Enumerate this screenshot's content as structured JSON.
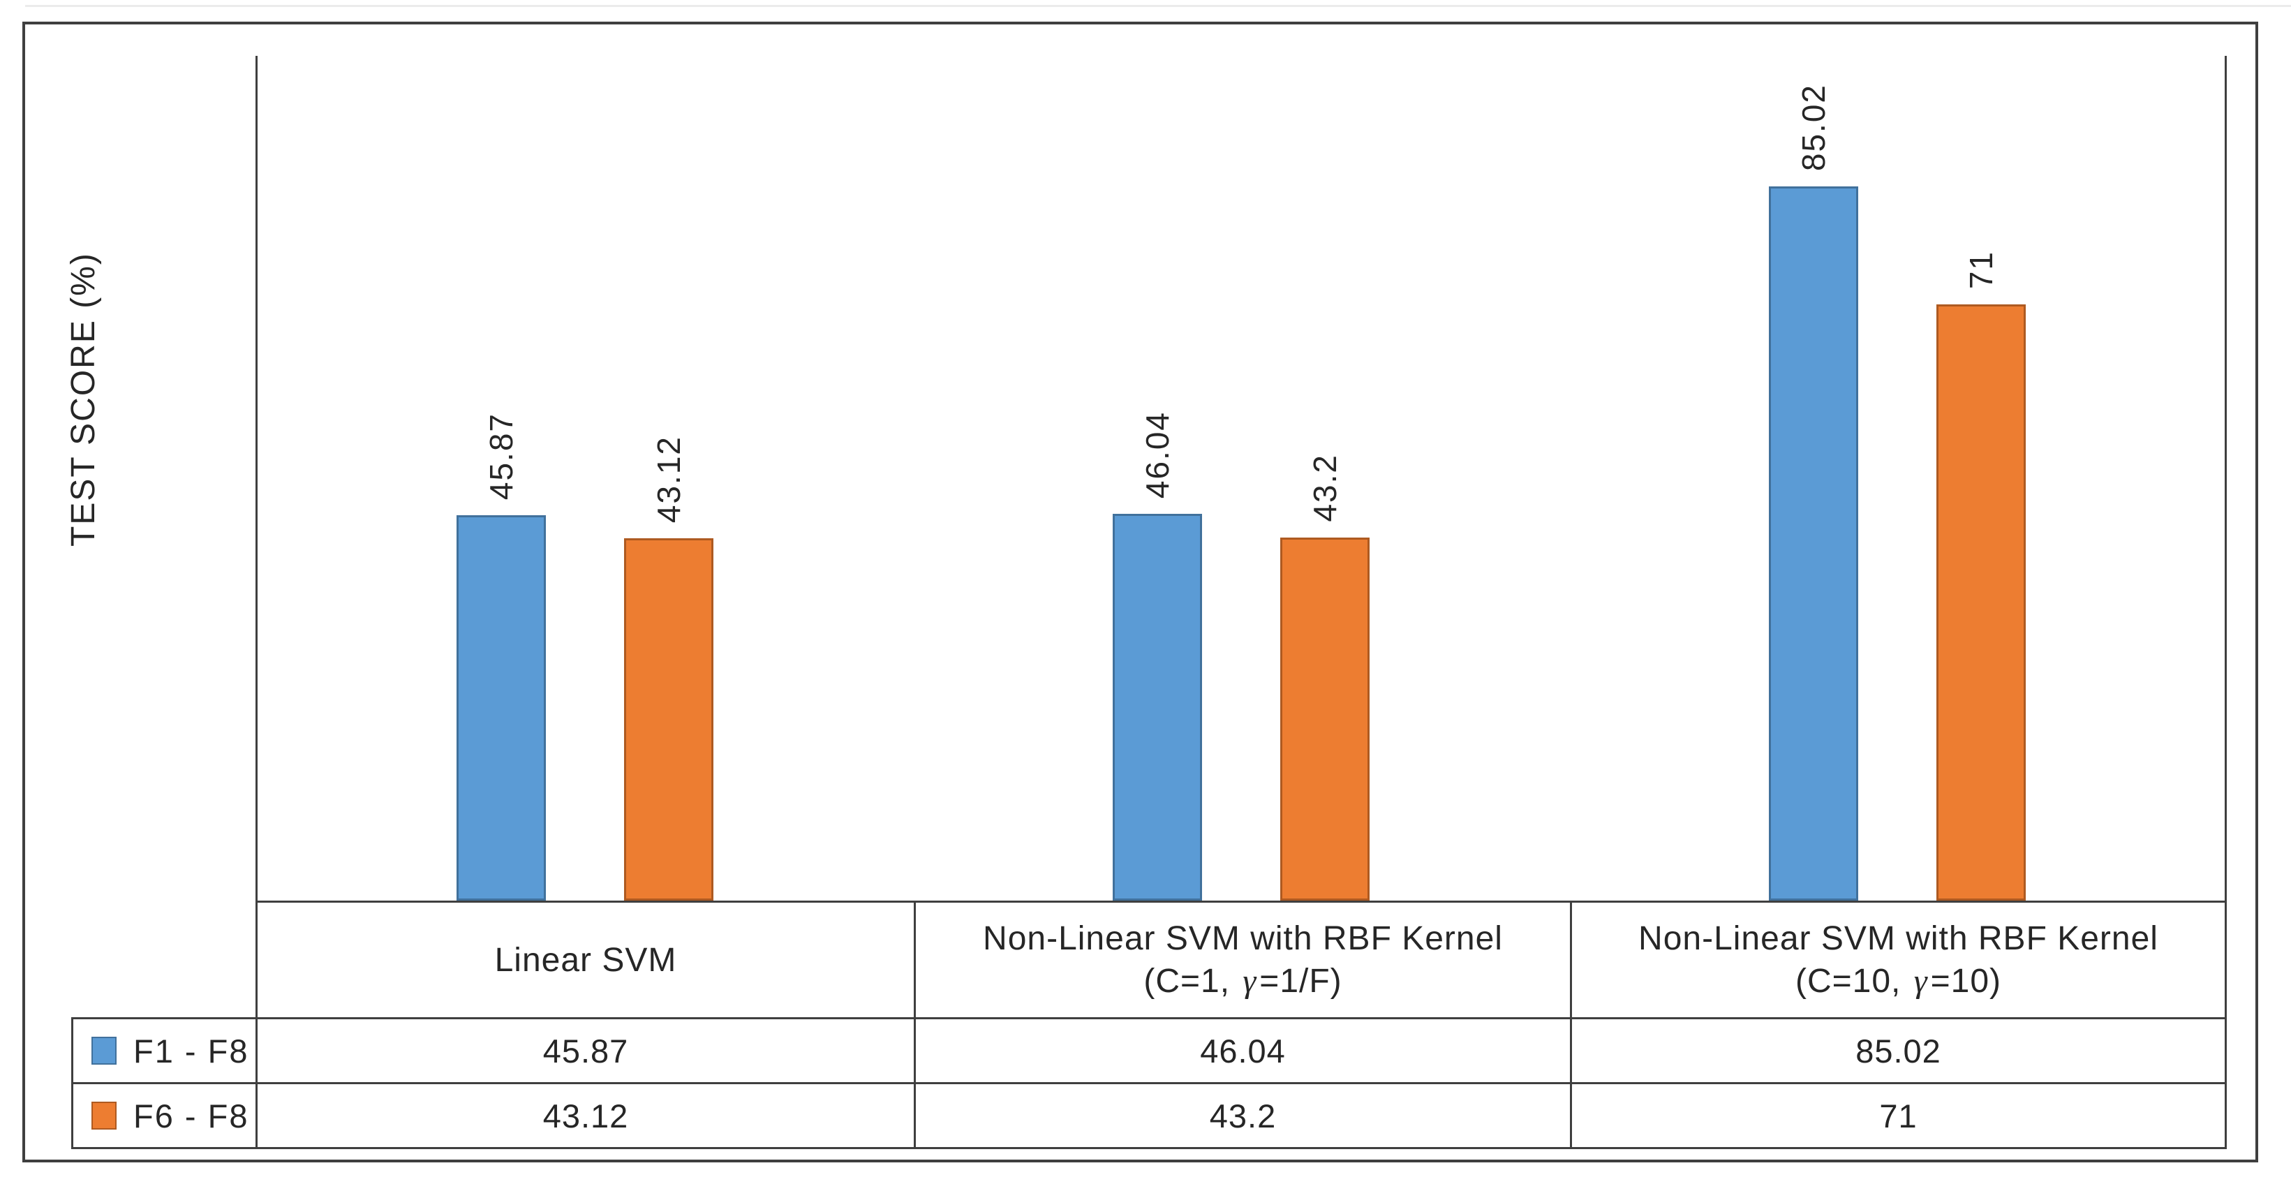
{
  "page": {
    "background": "#FFFFFF",
    "frame_color": "#3F3F3F"
  },
  "chart_data": {
    "type": "bar",
    "title": "",
    "xlabel": "",
    "ylabel": "TEST SCORE (%)",
    "ylim": [
      0,
      100
    ],
    "grid": false,
    "legend_position": "left column of data table below plot",
    "value_label_rotation_deg": 90,
    "categories": [
      {
        "label": "Linear SVM",
        "line1": "Linear SVM",
        "line2_prefix": "",
        "gamma": "",
        "line2_suffix": ""
      },
      {
        "label": "Non-Linear SVM with RBF Kernel (C=1, γ=1/F)",
        "line1": "Non-Linear SVM with RBF Kernel",
        "line2_prefix": "(C=1, ",
        "gamma": "γ",
        "line2_suffix": "=1/F)"
      },
      {
        "label": "Non-Linear SVM with RBF Kernel (C=10, γ=10)",
        "line1": "Non-Linear SVM with RBF Kernel",
        "line2_prefix": "(C=10, ",
        "gamma": "γ",
        "line2_suffix": "=10)"
      }
    ],
    "series": [
      {
        "name": "F1 - F8",
        "color": "#5B9BD5",
        "border_color": "#41719C",
        "values": [
          45.87,
          46.04,
          85.02
        ],
        "value_labels": [
          "45.87",
          "46.04",
          "85.02"
        ]
      },
      {
        "name": "F6 - F8",
        "color": "#ED7D31",
        "border_color": "#AE5A21",
        "values": [
          43.12,
          43.2,
          71
        ],
        "value_labels": [
          "43.12",
          "43.2",
          "71"
        ]
      }
    ]
  }
}
